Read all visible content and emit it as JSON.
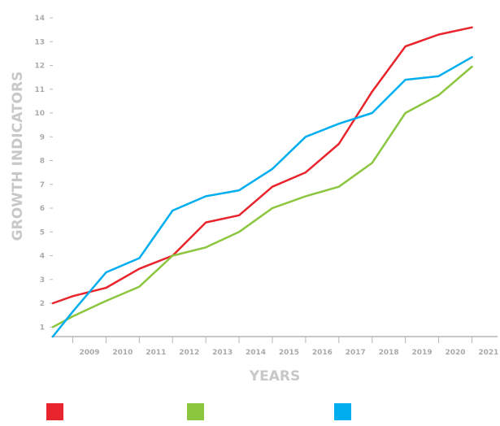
{
  "chart_data": {
    "type": "line",
    "title": "",
    "xlabel": "YEARS",
    "ylabel": "GROWTH INDICATORS",
    "x": [
      "2009",
      "2010",
      "2011",
      "2012",
      "2013",
      "2014",
      "2015",
      "2016",
      "2017",
      "2018",
      "2019",
      "2020",
      "2021"
    ],
    "x_values": [
      2008.4,
      2009,
      2010,
      2011,
      2012,
      2013,
      2014,
      2015,
      2016,
      2017,
      2018,
      2019,
      2020,
      2021
    ],
    "xlim": [
      2008.4,
      2021.6
    ],
    "ylim": [
      0.6,
      14
    ],
    "yticks": [
      1,
      2,
      3,
      4,
      5,
      6,
      7,
      8,
      9,
      10,
      11,
      12,
      13,
      14
    ],
    "grid": false,
    "legend": "bottom",
    "series": [
      {
        "color": "#e8242c",
        "values": [
          2.0,
          2.3,
          2.65,
          3.45,
          4.0,
          5.4,
          5.7,
          6.9,
          7.5,
          8.7,
          10.9,
          12.8,
          13.3,
          13.6
        ]
      },
      {
        "color": "#8cc63f",
        "values": [
          1.0,
          1.45,
          2.1,
          2.7,
          4.0,
          4.35,
          5.0,
          6.0,
          6.5,
          6.9,
          7.9,
          10.0,
          10.75,
          11.95
        ]
      },
      {
        "color": "#00aeef",
        "values": [
          0.6,
          1.65,
          3.3,
          3.9,
          5.9,
          6.5,
          6.75,
          7.65,
          9.0,
          9.55,
          10.0,
          11.4,
          11.55,
          12.35
        ]
      }
    ]
  }
}
